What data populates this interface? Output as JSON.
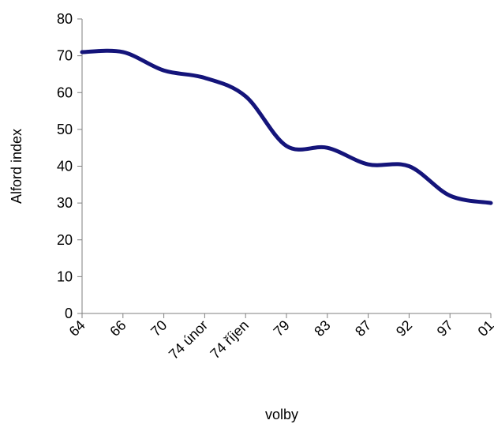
{
  "chart_data": {
    "type": "line",
    "title": "",
    "xlabel": "volby",
    "ylabel": "Alford index",
    "categories": [
      "64",
      "66",
      "70",
      "74 únor",
      "74 říjen",
      "79",
      "83",
      "87",
      "92",
      "97",
      "01"
    ],
    "series": [
      {
        "values": [
          71,
          71,
          66,
          64,
          59,
          45.5,
          45,
          40.5,
          40,
          32,
          30
        ]
      }
    ],
    "ylim": [
      0,
      80
    ],
    "yticks": [
      0,
      10,
      20,
      30,
      40,
      50,
      60,
      70,
      80
    ],
    "grid": false,
    "legend": "none",
    "line_color": "#14147a"
  }
}
